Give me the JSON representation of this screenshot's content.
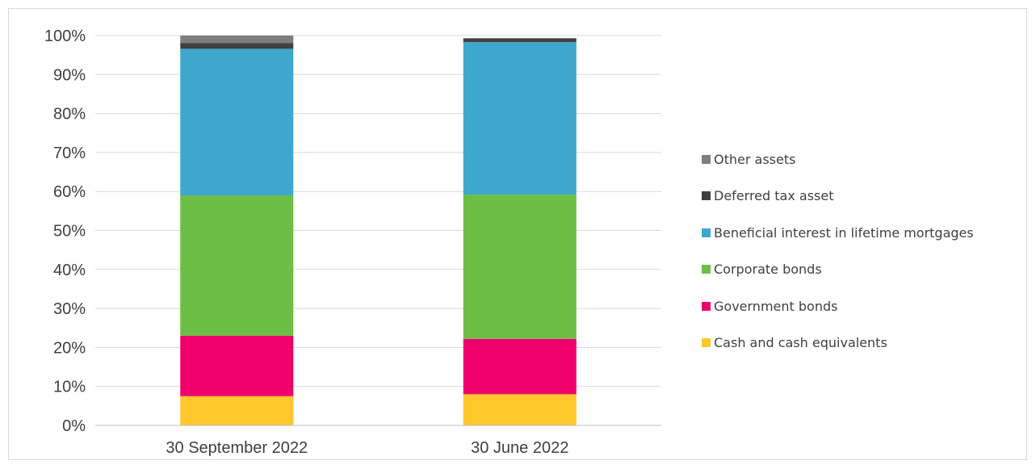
{
  "chart_data": {
    "type": "bar",
    "stacked": true,
    "categories": [
      "30 September 2022",
      "30 June 2022"
    ],
    "y_ticks": [
      "0%",
      "10%",
      "20%",
      "30%",
      "40%",
      "50%",
      "60%",
      "70%",
      "80%",
      "90%",
      "100%"
    ],
    "ylim": [
      0,
      100
    ],
    "grid": true,
    "legend_position": "right",
    "series": [
      {
        "name": "Cash and cash equivalents",
        "color": "#FFC72C",
        "values": [
          7.5,
          8
        ]
      },
      {
        "name": "Government bonds",
        "color": "#F0006B",
        "values": [
          15.5,
          14.2
        ]
      },
      {
        "name": "Corporate bonds",
        "color": "#6DBE45",
        "values": [
          36,
          37
        ]
      },
      {
        "name": "Beneficial interest in lifetime mortgages",
        "color": "#3EA7CD",
        "values": [
          37.6,
          39.1
        ]
      },
      {
        "name": "Deferred tax asset",
        "color": "#404040",
        "values": [
          1.5,
          1
        ]
      },
      {
        "name": "Other assets",
        "color": "#7F7F7F",
        "values": [
          1.9,
          0
        ]
      }
    ]
  }
}
